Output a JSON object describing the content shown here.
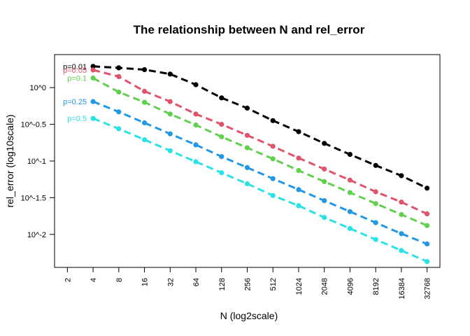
{
  "chart_data": {
    "type": "line",
    "title": "The relationship between N and rel_error",
    "xlabel": "N (log2scale)",
    "ylabel": "rel_error (log10scale)",
    "x_scale": "log2",
    "y_scale": "log10",
    "x_ticks": [
      "2",
      "4",
      "8",
      "16",
      "32",
      "64",
      "128",
      "256",
      "512",
      "1024",
      "2048",
      "4096",
      "8192",
      "16384",
      "32768"
    ],
    "y_ticks": [
      "10^0",
      "10^-0.5",
      "10^-1",
      "10^-1.5",
      "10^-2"
    ],
    "y_tick_exponents": [
      0,
      -0.5,
      -1,
      -1.5,
      -2
    ],
    "xlim_log2": [
      0.5,
      15.5
    ],
    "ylim_log10": [
      -2.45,
      0.45
    ],
    "grid": false,
    "x": [
      4,
      8,
      16,
      32,
      64,
      128,
      256,
      512,
      1024,
      2048,
      4096,
      8192,
      16384,
      32768
    ],
    "series": [
      {
        "name": "p=0.01",
        "color": "#000000",
        "log10_values": [
          0.29,
          0.27,
          0.245,
          0.185,
          0.04,
          -0.14,
          -0.28,
          -0.45,
          -0.6,
          -0.76,
          -0.91,
          -1.06,
          -1.2,
          -1.37
        ]
      },
      {
        "name": "p=0.05",
        "color": "#df536b",
        "log10_values": [
          0.24,
          0.15,
          -0.05,
          -0.19,
          -0.36,
          -0.5,
          -0.65,
          -0.8,
          -0.96,
          -1.11,
          -1.26,
          -1.42,
          -1.56,
          -1.72
        ]
      },
      {
        "name": "p=0.1",
        "color": "#61d04f",
        "log10_values": [
          0.13,
          -0.06,
          -0.2,
          -0.36,
          -0.51,
          -0.67,
          -0.82,
          -0.97,
          -1.13,
          -1.28,
          -1.43,
          -1.58,
          -1.73,
          -1.88
        ]
      },
      {
        "name": "p=0.25",
        "color": "#2297e6",
        "log10_values": [
          -0.19,
          -0.33,
          -0.48,
          -0.63,
          -0.78,
          -0.94,
          -1.09,
          -1.24,
          -1.39,
          -1.54,
          -1.69,
          -1.84,
          -1.99,
          -2.13
        ]
      },
      {
        "name": "p=0.5",
        "color": "#28e2e5",
        "log10_values": [
          -0.42,
          -0.56,
          -0.71,
          -0.86,
          -1.01,
          -1.16,
          -1.31,
          -1.47,
          -1.61,
          -1.77,
          -1.92,
          -2.07,
          -2.22,
          -2.37
        ]
      }
    ]
  }
}
